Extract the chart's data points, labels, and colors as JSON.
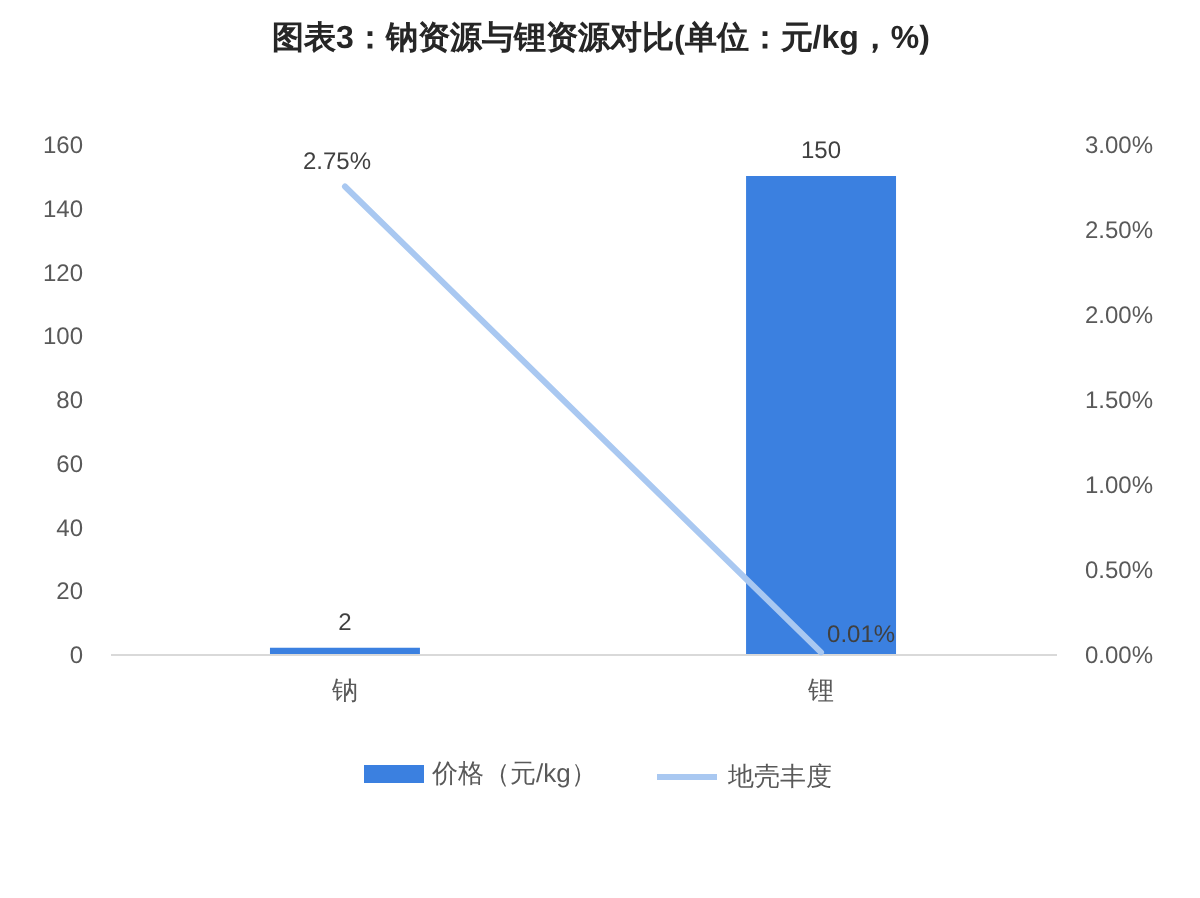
{
  "chart_data": {
    "type": "bar",
    "title": "图表3：钠资源与锂资源对比(单位：元/kg，%)",
    "categories": [
      "钠",
      "锂"
    ],
    "series": [
      {
        "name": "价格（元/kg）",
        "color": "#3b80e0",
        "values": [
          2,
          150
        ],
        "value_labels": [
          "2",
          "150"
        ]
      },
      {
        "name": "地壳丰度",
        "type": "line",
        "axis": "y2",
        "color": "#a9c8f1",
        "values": [
          2.75,
          0.01
        ],
        "value_labels": [
          "2.75%",
          "0.01%"
        ]
      }
    ],
    "ylim": [
      0,
      160
    ],
    "yticks": [
      0,
      20,
      40,
      60,
      80,
      100,
      120,
      140,
      160
    ],
    "y2lim": [
      0,
      3
    ],
    "y2ticks": [
      {
        "value": 0,
        "label": "0.00%"
      },
      {
        "value": 0.5,
        "label": "0.50%"
      },
      {
        "value": 1,
        "label": "1.00%"
      },
      {
        "value": 1.5,
        "label": "1.50%"
      },
      {
        "value": 2,
        "label": "2.00%"
      },
      {
        "value": 2.5,
        "label": "2.50%"
      },
      {
        "value": 3,
        "label": "3.00%"
      }
    ],
    "legend": "bottom"
  }
}
